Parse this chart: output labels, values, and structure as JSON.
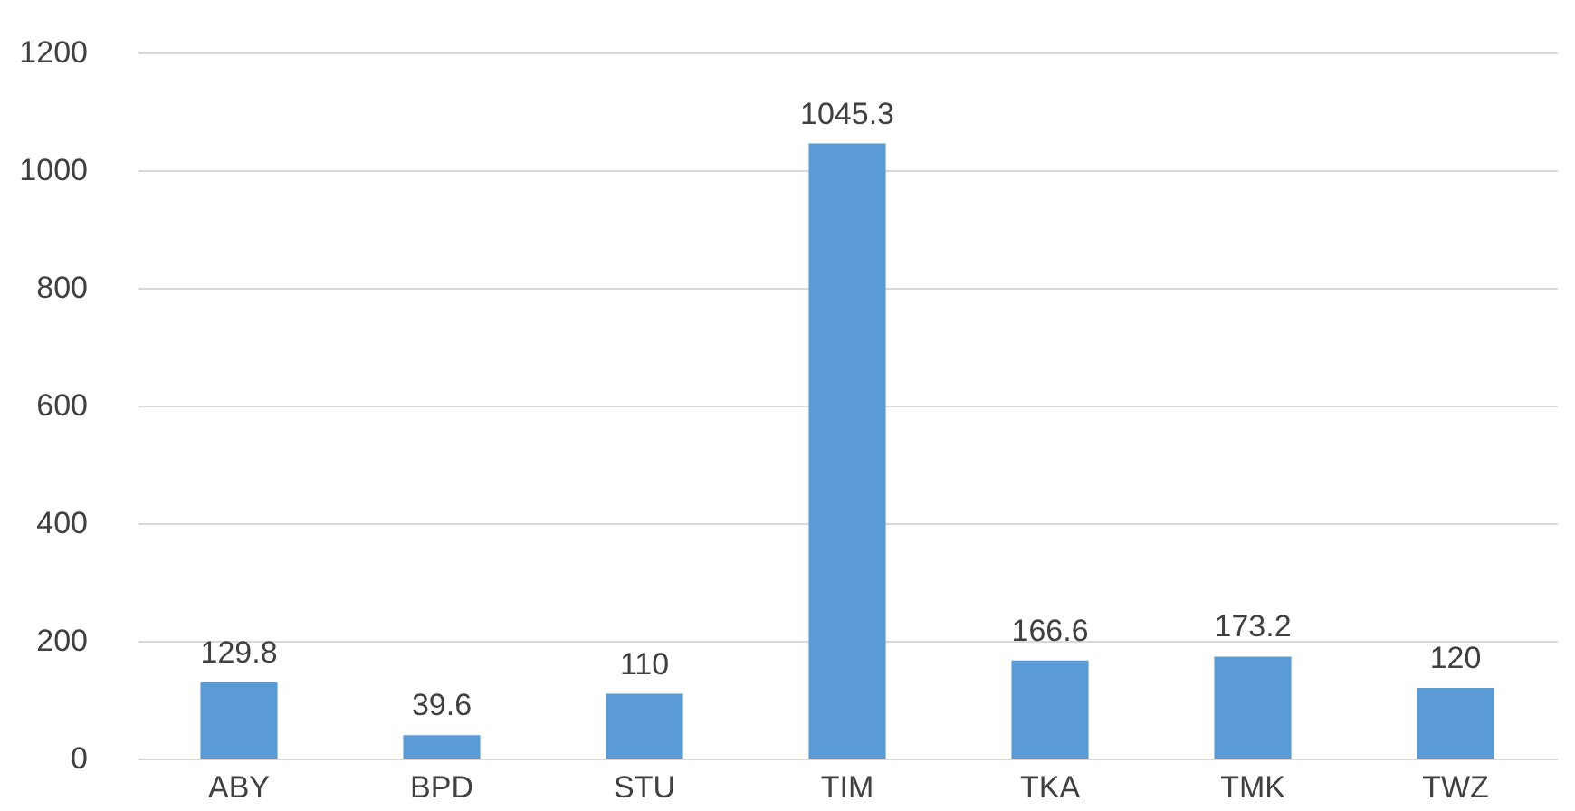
{
  "chart_data": {
    "type": "bar",
    "categories": [
      "ABY",
      "BPD",
      "STU",
      "TIM",
      "TKA",
      "TMK",
      "TWZ"
    ],
    "values": [
      129.8,
      39.6,
      110,
      1045.3,
      166.6,
      173.2,
      120
    ],
    "color": "#5b9bd5",
    "ylim": [
      0,
      1200
    ],
    "yticks": [
      0,
      200,
      400,
      600,
      800,
      1000,
      1200
    ],
    "grid": "y",
    "data_labels": true
  }
}
